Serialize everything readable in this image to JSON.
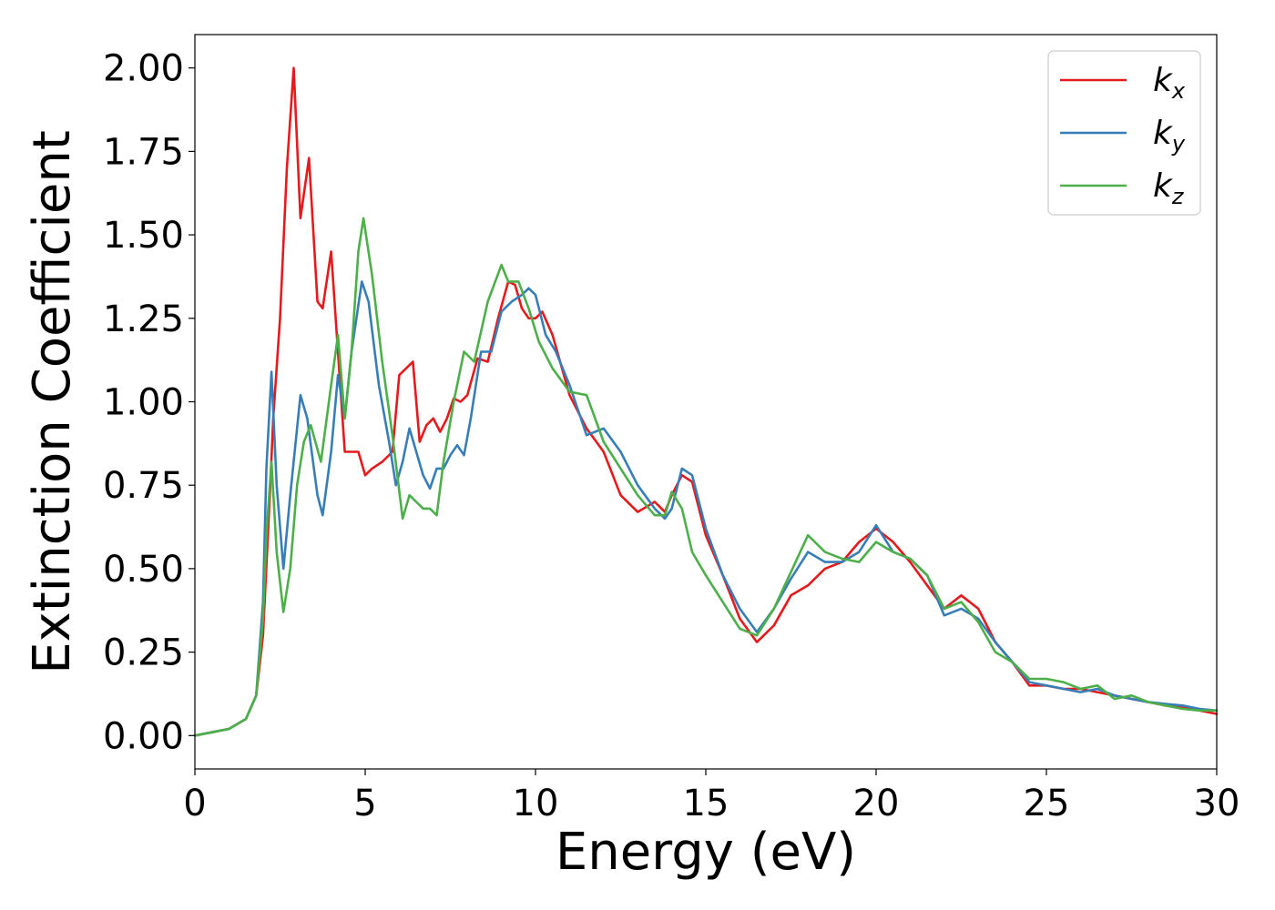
{
  "chart_data": {
    "type": "line",
    "title": "",
    "xlabel": "Energy (eV)",
    "ylabel": "Extinction Coefficient",
    "xlim": [
      0,
      30
    ],
    "ylim": [
      -0.1,
      2.1
    ],
    "xticks": [
      0,
      5,
      10,
      15,
      20,
      25,
      30
    ],
    "xtick_labels": [
      "0",
      "5",
      "10",
      "15",
      "20",
      "25",
      "30"
    ],
    "yticks": [
      0.0,
      0.25,
      0.5,
      0.75,
      1.0,
      1.25,
      1.5,
      1.75,
      2.0
    ],
    "ytick_labels": [
      "0.00",
      "0.25",
      "0.50",
      "0.75",
      "1.00",
      "1.25",
      "1.50",
      "1.75",
      "2.00"
    ],
    "grid": false,
    "legend_position": "top-right",
    "series": [
      {
        "name": "k",
        "subscript": "x",
        "color": "#e41a1c",
        "x": [
          0,
          0.5,
          1.0,
          1.5,
          1.8,
          2.0,
          2.2,
          2.3,
          2.5,
          2.7,
          2.9,
          3.1,
          3.35,
          3.6,
          3.75,
          4.0,
          4.2,
          4.4,
          4.6,
          4.8,
          5.0,
          5.2,
          5.5,
          5.8,
          6.0,
          6.2,
          6.4,
          6.6,
          6.8,
          7.0,
          7.2,
          7.4,
          7.6,
          7.8,
          8.0,
          8.3,
          8.6,
          8.9,
          9.2,
          9.4,
          9.6,
          9.8,
          10.0,
          10.2,
          10.5,
          11.0,
          11.5,
          12.0,
          12.5,
          13.0,
          13.5,
          13.8,
          14.0,
          14.3,
          14.6,
          15.0,
          15.5,
          16.0,
          16.5,
          17.0,
          17.5,
          18.0,
          18.5,
          19.0,
          19.5,
          20.0,
          20.5,
          21.0,
          21.5,
          22.0,
          22.5,
          23.0,
          23.5,
          24.0,
          24.5,
          25.0,
          25.5,
          26.0,
          26.5,
          27.0,
          27.5,
          28.0,
          28.5,
          29.0,
          29.5,
          30.0
        ],
        "y": [
          0.0,
          0.01,
          0.02,
          0.05,
          0.12,
          0.3,
          0.72,
          0.95,
          1.25,
          1.7,
          2.0,
          1.55,
          1.73,
          1.3,
          1.28,
          1.45,
          1.15,
          0.85,
          0.85,
          0.85,
          0.78,
          0.8,
          0.82,
          0.85,
          1.08,
          1.1,
          1.12,
          0.88,
          0.93,
          0.95,
          0.91,
          0.95,
          1.01,
          1.0,
          1.02,
          1.13,
          1.12,
          1.25,
          1.36,
          1.35,
          1.28,
          1.25,
          1.25,
          1.27,
          1.2,
          1.02,
          0.92,
          0.85,
          0.72,
          0.67,
          0.7,
          0.67,
          0.72,
          0.78,
          0.76,
          0.6,
          0.48,
          0.35,
          0.28,
          0.33,
          0.42,
          0.45,
          0.5,
          0.52,
          0.58,
          0.62,
          0.58,
          0.52,
          0.45,
          0.38,
          0.42,
          0.38,
          0.28,
          0.22,
          0.15,
          0.15,
          0.14,
          0.14,
          0.13,
          0.12,
          0.11,
          0.1,
          0.09,
          0.085,
          0.075,
          0.065
        ]
      },
      {
        "name": "k",
        "subscript": "y",
        "color": "#377eb8",
        "x": [
          0,
          0.5,
          1.0,
          1.5,
          1.8,
          2.0,
          2.1,
          2.25,
          2.4,
          2.6,
          2.8,
          3.1,
          3.3,
          3.6,
          3.75,
          4.0,
          4.2,
          4.4,
          4.6,
          4.9,
          5.1,
          5.4,
          5.7,
          5.9,
          6.1,
          6.3,
          6.5,
          6.7,
          6.9,
          7.1,
          7.3,
          7.5,
          7.7,
          7.9,
          8.1,
          8.4,
          8.7,
          9.0,
          9.3,
          9.6,
          9.8,
          10.0,
          10.3,
          10.6,
          11.0,
          11.5,
          12.0,
          12.5,
          13.0,
          13.5,
          13.8,
          14.0,
          14.3,
          14.6,
          15.0,
          15.5,
          16.0,
          16.5,
          17.0,
          17.5,
          18.0,
          18.5,
          19.0,
          19.5,
          20.0,
          20.5,
          21.0,
          21.5,
          22.0,
          22.5,
          23.0,
          23.5,
          24.0,
          24.5,
          25.0,
          25.5,
          26.0,
          26.5,
          27.0,
          27.5,
          28.0,
          28.5,
          29.0,
          29.5,
          30.0
        ],
        "y": [
          0.0,
          0.01,
          0.02,
          0.05,
          0.12,
          0.4,
          0.8,
          1.09,
          0.75,
          0.5,
          0.72,
          1.02,
          0.95,
          0.72,
          0.66,
          0.85,
          1.08,
          0.95,
          1.15,
          1.36,
          1.3,
          1.05,
          0.88,
          0.75,
          0.82,
          0.92,
          0.85,
          0.78,
          0.74,
          0.8,
          0.8,
          0.84,
          0.87,
          0.84,
          0.95,
          1.15,
          1.15,
          1.27,
          1.3,
          1.32,
          1.34,
          1.32,
          1.2,
          1.15,
          1.05,
          0.9,
          0.92,
          0.85,
          0.75,
          0.68,
          0.65,
          0.68,
          0.8,
          0.78,
          0.62,
          0.48,
          0.38,
          0.31,
          0.38,
          0.47,
          0.55,
          0.52,
          0.52,
          0.55,
          0.63,
          0.55,
          0.53,
          0.48,
          0.36,
          0.38,
          0.35,
          0.28,
          0.22,
          0.16,
          0.15,
          0.14,
          0.13,
          0.14,
          0.12,
          0.11,
          0.1,
          0.095,
          0.09,
          0.08,
          0.075
        ]
      },
      {
        "name": "k",
        "subscript": "z",
        "color": "#4daf4a",
        "x": [
          0,
          0.5,
          1.0,
          1.5,
          1.8,
          2.0,
          2.1,
          2.25,
          2.4,
          2.6,
          2.8,
          3.0,
          3.2,
          3.4,
          3.7,
          4.0,
          4.2,
          4.4,
          4.6,
          4.8,
          4.95,
          5.2,
          5.5,
          5.8,
          6.1,
          6.3,
          6.5,
          6.7,
          6.9,
          7.1,
          7.3,
          7.6,
          7.9,
          8.2,
          8.6,
          9.0,
          9.2,
          9.5,
          9.8,
          10.1,
          10.5,
          11.0,
          11.5,
          12.0,
          12.5,
          13.0,
          13.5,
          13.8,
          14.0,
          14.3,
          14.6,
          15.0,
          15.5,
          16.0,
          16.5,
          17.0,
          17.5,
          18.0,
          18.5,
          19.0,
          19.5,
          20.0,
          20.5,
          21.0,
          21.5,
          22.0,
          22.5,
          23.0,
          23.5,
          24.0,
          24.5,
          25.0,
          25.5,
          26.0,
          26.5,
          27.0,
          27.5,
          28.0,
          28.5,
          29.0,
          29.5,
          30.0
        ],
        "y": [
          0.0,
          0.01,
          0.02,
          0.05,
          0.12,
          0.35,
          0.6,
          0.82,
          0.55,
          0.37,
          0.5,
          0.75,
          0.88,
          0.93,
          0.82,
          1.05,
          1.2,
          0.95,
          1.15,
          1.45,
          1.55,
          1.38,
          1.12,
          0.9,
          0.65,
          0.72,
          0.7,
          0.68,
          0.68,
          0.66,
          0.82,
          1.0,
          1.15,
          1.12,
          1.3,
          1.41,
          1.36,
          1.36,
          1.28,
          1.18,
          1.1,
          1.03,
          1.02,
          0.88,
          0.8,
          0.72,
          0.66,
          0.66,
          0.73,
          0.68,
          0.55,
          0.48,
          0.4,
          0.32,
          0.3,
          0.38,
          0.49,
          0.6,
          0.55,
          0.53,
          0.52,
          0.58,
          0.55,
          0.53,
          0.48,
          0.38,
          0.4,
          0.34,
          0.25,
          0.22,
          0.17,
          0.17,
          0.16,
          0.14,
          0.15,
          0.11,
          0.12,
          0.1,
          0.09,
          0.08,
          0.075,
          0.075
        ]
      }
    ]
  }
}
